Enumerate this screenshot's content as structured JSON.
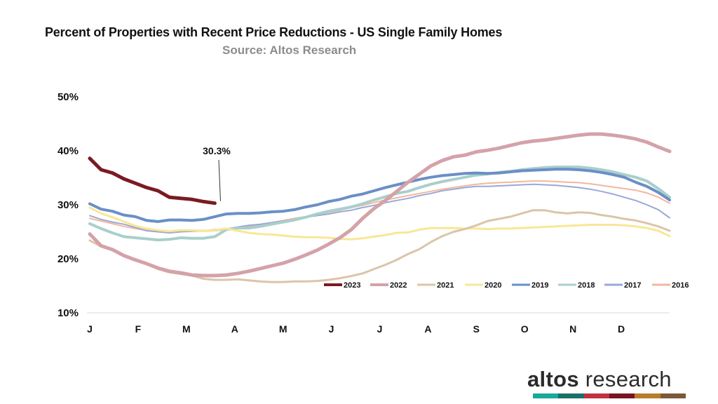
{
  "header": {
    "title": "Percent of Properties with Recent Price Reductions - US Single Family Homes",
    "subtitle": "Source: Altos Research"
  },
  "brand": {
    "name_bold": "altos",
    "name_rest": " research",
    "bar_colors": [
      "#1aa89a",
      "#1b6f6a",
      "#c1323f",
      "#7a1424",
      "#b97c2a",
      "#7a5a3a"
    ]
  },
  "chart_data": {
    "type": "line",
    "title": "Percent of Properties with Recent Price Reductions - US Single Family Homes",
    "xlabel": "",
    "ylabel": "",
    "x_ticks": [
      "J",
      "F",
      "M",
      "A",
      "M",
      "J",
      "J",
      "A",
      "S",
      "O",
      "N",
      "D"
    ],
    "y_ticks": [
      "10%",
      "20%",
      "30%",
      "40%",
      "50%"
    ],
    "ylim": [
      10,
      50
    ],
    "xlim": [
      0,
      51
    ],
    "grid": false,
    "legend_position": "bottom-right",
    "annotation": {
      "text": "30.3%",
      "week": 11.5,
      "value": 30.3
    },
    "series": [
      {
        "name": "2023",
        "color": "#7b1a22",
        "width": 5,
        "values": [
          38.6,
          36.5,
          35.9,
          34.8,
          34.0,
          33.2,
          32.6,
          31.4,
          31.2,
          31.0,
          30.6,
          30.3
        ]
      },
      {
        "name": "2022",
        "color": "#d4a2a8",
        "width": 5,
        "values": [
          24.6,
          22.4,
          21.7,
          20.6,
          19.8,
          19.1,
          18.3,
          17.7,
          17.4,
          17.0,
          16.9,
          16.9,
          17.0,
          17.3,
          17.7,
          18.2,
          18.7,
          19.2,
          19.9,
          20.7,
          21.6,
          22.7,
          23.9,
          25.4,
          27.5,
          29.3,
          30.8,
          32.5,
          34.2,
          35.7,
          37.2,
          38.2,
          38.9,
          39.2,
          39.8,
          40.1,
          40.5,
          41.0,
          41.5,
          41.8,
          42.0,
          42.3,
          42.6,
          42.9,
          43.1,
          43.1,
          42.9,
          42.6,
          42.2,
          41.6,
          40.7,
          39.9
        ]
      },
      {
        "name": "2021",
        "color": "#dbc5a8",
        "width": 3,
        "values": [
          23.4,
          22.3,
          21.6,
          20.6,
          19.7,
          19.0,
          18.1,
          17.5,
          17.2,
          16.9,
          16.3,
          16.1,
          16.1,
          16.2,
          16.0,
          15.8,
          15.7,
          15.7,
          15.8,
          15.8,
          15.9,
          16.1,
          16.4,
          16.8,
          17.3,
          18.1,
          18.9,
          19.8,
          20.9,
          21.8,
          23.1,
          24.2,
          25.0,
          25.5,
          26.2,
          27.0,
          27.4,
          27.8,
          28.4,
          29.0,
          29.0,
          28.6,
          28.4,
          28.6,
          28.5,
          28.1,
          27.8,
          27.4,
          27.1,
          26.6,
          26.0,
          25.2
        ]
      },
      {
        "name": "2020",
        "color": "#f8e796",
        "width": 3,
        "values": [
          29.5,
          28.4,
          27.7,
          26.9,
          26.1,
          25.6,
          25.3,
          25.1,
          25.3,
          25.3,
          25.2,
          25.3,
          25.6,
          25.2,
          24.8,
          24.6,
          24.5,
          24.3,
          24.1,
          24.0,
          24.0,
          23.9,
          23.7,
          23.6,
          23.8,
          24.1,
          24.4,
          24.8,
          24.9,
          25.4,
          25.7,
          25.7,
          25.7,
          25.6,
          25.6,
          25.5,
          25.6,
          25.6,
          25.7,
          25.8,
          25.9,
          26.0,
          26.1,
          26.2,
          26.3,
          26.3,
          26.3,
          26.2,
          26.0,
          25.7,
          25.2,
          24.2
        ]
      },
      {
        "name": "2019",
        "color": "#6a8fc6",
        "width": 4,
        "values": [
          30.2,
          29.2,
          28.8,
          28.1,
          27.8,
          27.1,
          26.9,
          27.2,
          27.2,
          27.1,
          27.3,
          27.8,
          28.3,
          28.4,
          28.4,
          28.5,
          28.7,
          28.8,
          29.1,
          29.6,
          30.0,
          30.6,
          31.0,
          31.6,
          32.0,
          32.6,
          33.2,
          33.7,
          34.2,
          34.7,
          35.1,
          35.4,
          35.6,
          35.8,
          35.9,
          35.8,
          35.9,
          36.1,
          36.3,
          36.4,
          36.5,
          36.6,
          36.6,
          36.5,
          36.3,
          36.0,
          35.6,
          35.1,
          34.2,
          33.4,
          32.3,
          30.9
        ]
      },
      {
        "name": "2018",
        "color": "#a8cfcc",
        "width": 4,
        "values": [
          26.5,
          25.6,
          24.8,
          24.1,
          23.9,
          23.7,
          23.5,
          23.6,
          23.9,
          23.8,
          23.8,
          24.1,
          25.4,
          25.7,
          25.7,
          26.0,
          26.4,
          26.8,
          27.2,
          27.7,
          28.3,
          28.8,
          29.2,
          29.6,
          30.2,
          30.9,
          31.5,
          32.1,
          32.5,
          33.2,
          33.8,
          34.3,
          34.7,
          35.1,
          35.5,
          35.7,
          36.0,
          36.2,
          36.5,
          36.7,
          36.9,
          37.0,
          37.0,
          37.0,
          36.8,
          36.5,
          36.1,
          35.6,
          35.1,
          34.4,
          33.0,
          31.4
        ]
      },
      {
        "name": "2017",
        "color": "#9aa8d6",
        "width": 2,
        "values": [
          28.0,
          27.3,
          26.8,
          26.4,
          25.8,
          25.2,
          25.0,
          24.8,
          25.0,
          25.1,
          25.2,
          25.4,
          25.5,
          25.9,
          26.2,
          26.4,
          26.7,
          27.0,
          27.3,
          27.7,
          28.0,
          28.3,
          28.7,
          29.0,
          29.5,
          29.9,
          30.4,
          30.8,
          31.2,
          31.7,
          32.1,
          32.6,
          32.9,
          33.2,
          33.4,
          33.4,
          33.5,
          33.6,
          33.7,
          33.8,
          33.7,
          33.6,
          33.4,
          33.2,
          32.9,
          32.5,
          32.0,
          31.4,
          30.8,
          30.0,
          29.1,
          27.6
        ]
      },
      {
        "name": "2016",
        "color": "#f2b7a0",
        "width": 2,
        "values": [
          27.5,
          27.0,
          26.5,
          26.0,
          25.6,
          25.3,
          25.1,
          25.1,
          25.3,
          25.2,
          25.1,
          25.2,
          25.4,
          25.7,
          26.0,
          26.3,
          26.7,
          27.1,
          27.5,
          27.8,
          28.2,
          28.6,
          29.0,
          29.5,
          29.9,
          30.4,
          30.9,
          31.3,
          31.7,
          32.1,
          32.5,
          32.9,
          33.2,
          33.5,
          33.8,
          34.0,
          34.1,
          34.2,
          34.3,
          34.4,
          34.4,
          34.3,
          34.2,
          34.1,
          33.9,
          33.6,
          33.3,
          33.0,
          32.7,
          32.2,
          31.4,
          30.3
        ]
      }
    ]
  }
}
